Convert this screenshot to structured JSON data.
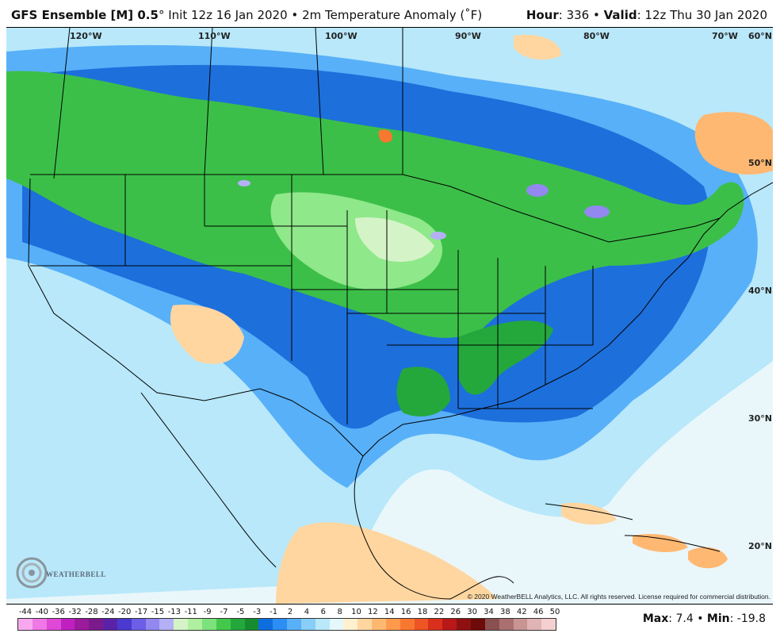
{
  "header": {
    "model": "GFS Ensemble [M] 0.5",
    "degree": "°",
    "init": "Init 12z 16 Jan 2020",
    "separator": "•",
    "variable": "2m Temperature Anomaly (˚F)",
    "hour_label": "Hour",
    "hour_value": ": 336",
    "valid_label": "Valid",
    "valid_value": ": 12z Thu 30 Jan 2020"
  },
  "map": {
    "longitudes": [
      "120°W",
      "110°W",
      "100°W",
      "90°W",
      "80°W",
      "70°W"
    ],
    "latitudes": [
      "60°N",
      "50°N",
      "40°N",
      "30°N",
      "20°N"
    ],
    "copyright": "© 2020 WeatherBELL Analytics, LLC. All rights reserved. License required for commercial distribution.",
    "logo_text": "WEATHERBELL"
  },
  "scale": {
    "labels": [
      "-44",
      "-40",
      "-36",
      "-32",
      "-28",
      "-24",
      "-20",
      "-17",
      "-15",
      "-13",
      "-11",
      "-9",
      "-7",
      "-5",
      "-3",
      "-1",
      "2",
      "4",
      "6",
      "8",
      "10",
      "12",
      "14",
      "16",
      "18",
      "22",
      "26",
      "30",
      "34",
      "38",
      "42",
      "46",
      "50"
    ],
    "colors": [
      "#f9a8f0",
      "#f078e6",
      "#e048d8",
      "#c020c0",
      "#9c1a9c",
      "#7a1a8c",
      "#5a22a8",
      "#4a3ad0",
      "#6c5ee6",
      "#9288f0",
      "#b4b0f6",
      "#d4f4c8",
      "#aef0a0",
      "#7ce27c",
      "#44c84c",
      "#24a83c",
      "#168c2e",
      "#0e6ee0",
      "#2c8ef4",
      "#58b0f8",
      "#88cef8",
      "#b8e8fa",
      "#e4f8fb",
      "#fff0d0",
      "#ffd6a0",
      "#ffb872",
      "#ff9a4c",
      "#f87830",
      "#ee5424",
      "#d8301c",
      "#b81818",
      "#8e1010",
      "#6e0a0a",
      "#8a5050",
      "#aa7070",
      "#c89494",
      "#e0b4b4",
      "#f4d0d0"
    ]
  },
  "stats": {
    "max_label": "Max",
    "max_value": ": 7.4",
    "min_label": "Min",
    "min_value": ": -19.8"
  }
}
